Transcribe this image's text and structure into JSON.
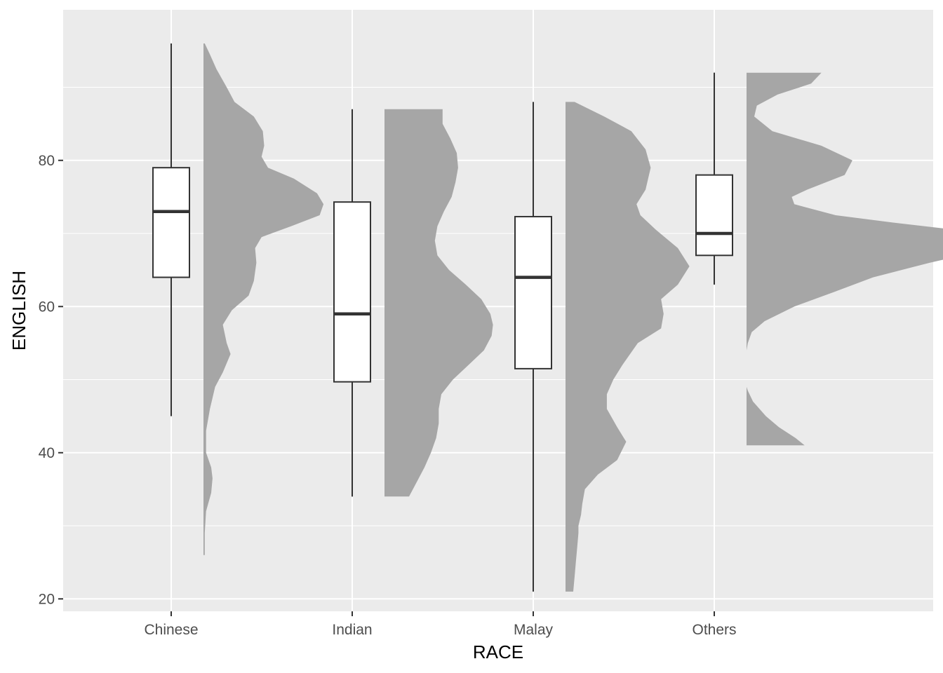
{
  "chart_data": {
    "type": "raincloud",
    "xlabel": "RACE",
    "ylabel": "ENGLISH",
    "categories": [
      "Chinese",
      "Indian",
      "Malay",
      "Others"
    ],
    "ylim": [
      18.3,
      100.6
    ],
    "yticks": [
      20,
      40,
      60,
      80
    ],
    "grid": true,
    "legend": "none",
    "colors": {
      "panel": "#ebebeb",
      "grid": "#ffffff",
      "density_fill": "#a6a6a6",
      "box_line": "#333333",
      "box_fill": "#ffffff",
      "tick_text": "#4d4d4d"
    },
    "boxplots": [
      {
        "category": "Chinese",
        "min": 45,
        "q1": 64,
        "median": 73,
        "q3": 79,
        "max": 96
      },
      {
        "category": "Indian",
        "min": 34,
        "q1": 49.7,
        "median": 59,
        "q3": 74.3,
        "max": 87
      },
      {
        "category": "Malay",
        "min": 21,
        "q1": 51.5,
        "median": 64,
        "q3": 72.3,
        "max": 88
      },
      {
        "category": "Others",
        "min": 63,
        "q1": 67,
        "median": 70,
        "q3": 78,
        "max": 92
      }
    ],
    "densities": [
      {
        "category": "Chinese",
        "points": [
          [
            26,
            0.01
          ],
          [
            29,
            0.01
          ],
          [
            32,
            0.02
          ],
          [
            34.5,
            0.06
          ],
          [
            36.5,
            0.07
          ],
          [
            38,
            0.06
          ],
          [
            40,
            0.02
          ],
          [
            43,
            0.02
          ],
          [
            46,
            0.05
          ],
          [
            49,
            0.09
          ],
          [
            51,
            0.15
          ],
          [
            53.5,
            0.21
          ],
          [
            55,
            0.18
          ],
          [
            57.5,
            0.15
          ],
          [
            59.5,
            0.22
          ],
          [
            61.5,
            0.35
          ],
          [
            63.5,
            0.39
          ],
          [
            66,
            0.41
          ],
          [
            68,
            0.4
          ],
          [
            69.5,
            0.45
          ],
          [
            71,
            0.68
          ],
          [
            72.5,
            0.9
          ],
          [
            74,
            0.93
          ],
          [
            75.5,
            0.88
          ],
          [
            77.5,
            0.7
          ],
          [
            79,
            0.5
          ],
          [
            80.5,
            0.45
          ],
          [
            82,
            0.47
          ],
          [
            84,
            0.46
          ],
          [
            86,
            0.39
          ],
          [
            88,
            0.24
          ],
          [
            90,
            0.18
          ],
          [
            92.5,
            0.1
          ],
          [
            94.5,
            0.05
          ],
          [
            96,
            0.01
          ]
        ]
      },
      {
        "category": "Indian",
        "points": [
          [
            34,
            0.19
          ],
          [
            36,
            0.25
          ],
          [
            38,
            0.31
          ],
          [
            40,
            0.36
          ],
          [
            42,
            0.4
          ],
          [
            44,
            0.42
          ],
          [
            46,
            0.42
          ],
          [
            48,
            0.44
          ],
          [
            50,
            0.53
          ],
          [
            52,
            0.65
          ],
          [
            54,
            0.77
          ],
          [
            56,
            0.83
          ],
          [
            57.5,
            0.84
          ],
          [
            59,
            0.82
          ],
          [
            61,
            0.75
          ],
          [
            63,
            0.63
          ],
          [
            65,
            0.5
          ],
          [
            67,
            0.41
          ],
          [
            69,
            0.39
          ],
          [
            71,
            0.41
          ],
          [
            73,
            0.46
          ],
          [
            75,
            0.52
          ],
          [
            77,
            0.55
          ],
          [
            79,
            0.57
          ],
          [
            81,
            0.56
          ],
          [
            83,
            0.51
          ],
          [
            85,
            0.45
          ],
          [
            87,
            0.45
          ]
        ]
      },
      {
        "category": "Malay",
        "points": [
          [
            21,
            0.06
          ],
          [
            23,
            0.07
          ],
          [
            25,
            0.08
          ],
          [
            27,
            0.09
          ],
          [
            29,
            0.1
          ],
          [
            30,
            0.1
          ],
          [
            31.5,
            0.12
          ],
          [
            33,
            0.13
          ],
          [
            35,
            0.15
          ],
          [
            37,
            0.25
          ],
          [
            39,
            0.4
          ],
          [
            41.5,
            0.47
          ],
          [
            43.5,
            0.4
          ],
          [
            46,
            0.32
          ],
          [
            48,
            0.32
          ],
          [
            50,
            0.37
          ],
          [
            52,
            0.44
          ],
          [
            55,
            0.56
          ],
          [
            57,
            0.74
          ],
          [
            59,
            0.76
          ],
          [
            61,
            0.74
          ],
          [
            63,
            0.87
          ],
          [
            65.5,
            0.96
          ],
          [
            68,
            0.87
          ],
          [
            70.5,
            0.7
          ],
          [
            72.5,
            0.58
          ],
          [
            74,
            0.55
          ],
          [
            76,
            0.62
          ],
          [
            79,
            0.66
          ],
          [
            81.5,
            0.62
          ],
          [
            84,
            0.51
          ],
          [
            86,
            0.3
          ],
          [
            88,
            0.07
          ]
        ]
      },
      {
        "category": "Others",
        "points": [
          [
            41,
            0.45
          ],
          [
            42,
            0.38
          ],
          [
            43.5,
            0.25
          ],
          [
            45,
            0.15
          ],
          [
            47,
            0.05
          ],
          [
            48.5,
            0.01
          ],
          [
            49,
            0.0
          ],
          [
            54,
            0.0
          ],
          [
            55,
            0.01
          ],
          [
            56.5,
            0.04
          ],
          [
            58,
            0.14
          ],
          [
            60,
            0.37
          ],
          [
            62,
            0.68
          ],
          [
            64,
            0.98
          ],
          [
            66,
            1.42
          ],
          [
            67.5,
            1.8
          ],
          [
            69,
            1.9
          ],
          [
            70.5,
            1.62
          ],
          [
            71.5,
            1.13
          ],
          [
            72.5,
            0.69
          ],
          [
            74,
            0.37
          ],
          [
            75,
            0.35
          ],
          [
            76,
            0.47
          ],
          [
            78,
            0.76
          ],
          [
            80,
            0.82
          ],
          [
            82,
            0.58
          ],
          [
            84,
            0.2
          ],
          [
            86,
            0.06
          ],
          [
            87.5,
            0.08
          ],
          [
            89,
            0.24
          ],
          [
            90.5,
            0.5
          ],
          [
            92,
            0.58
          ]
        ]
      }
    ]
  }
}
